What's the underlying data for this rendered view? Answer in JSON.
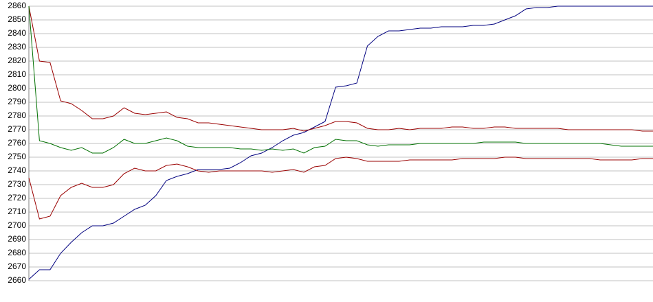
{
  "chart_data": {
    "type": "line",
    "ylim": [
      2660,
      2860
    ],
    "yticks": [
      2660,
      2670,
      2680,
      2690,
      2700,
      2710,
      2720,
      2730,
      2740,
      2750,
      2760,
      2770,
      2780,
      2790,
      2800,
      2810,
      2820,
      2830,
      2840,
      2850,
      2860
    ],
    "grid": true,
    "series": [
      {
        "color": "#00007f",
        "values": [
          2661,
          2668,
          2668,
          2680,
          2688,
          2695,
          2700,
          2700,
          2702,
          2707,
          2712,
          2715,
          2722,
          2733,
          2736,
          2738,
          2741,
          2741,
          2741,
          2742,
          2746,
          2751,
          2753,
          2757,
          2762,
          2766,
          2768,
          2772,
          2776,
          2801,
          2802,
          2804,
          2831,
          2838,
          2842,
          2842,
          2843,
          2844,
          2844,
          2845,
          2845,
          2845,
          2846,
          2846,
          2847,
          2850,
          2853,
          2858,
          2859,
          2859,
          2860,
          2860,
          2860,
          2860,
          2860,
          2860,
          2860,
          2860,
          2860,
          2860
        ]
      },
      {
        "color": "#9a0000",
        "values": [
          2860,
          2820,
          2819,
          2791,
          2789,
          2784,
          2778,
          2778,
          2780,
          2786,
          2782,
          2781,
          2782,
          2783,
          2779,
          2778,
          2775,
          2775,
          2774,
          2773,
          2772,
          2771,
          2770,
          2770,
          2770,
          2771,
          2769,
          2771,
          2773,
          2776,
          2776,
          2775,
          2771,
          2770,
          2770,
          2771,
          2770,
          2771,
          2771,
          2771,
          2772,
          2772,
          2771,
          2771,
          2772,
          2772,
          2771,
          2771,
          2771,
          2771,
          2771,
          2770,
          2770,
          2770,
          2770,
          2770,
          2770,
          2770,
          2769,
          2769
        ]
      },
      {
        "color": "#007000",
        "values": [
          2860,
          2762,
          2760,
          2757,
          2755,
          2757,
          2753,
          2753,
          2757,
          2763,
          2760,
          2760,
          2762,
          2764,
          2762,
          2758,
          2757,
          2757,
          2757,
          2757,
          2756,
          2756,
          2755,
          2756,
          2755,
          2756,
          2753,
          2757,
          2758,
          2763,
          2762,
          2762,
          2759,
          2758,
          2759,
          2759,
          2759,
          2760,
          2760,
          2760,
          2760,
          2760,
          2760,
          2761,
          2761,
          2761,
          2761,
          2760,
          2760,
          2760,
          2760,
          2760,
          2760,
          2760,
          2760,
          2759,
          2758,
          2758,
          2758,
          2758
        ]
      },
      {
        "color": "#9a0000",
        "values": [
          2735,
          2705,
          2707,
          2722,
          2728,
          2731,
          2728,
          2728,
          2730,
          2738,
          2742,
          2740,
          2740,
          2744,
          2745,
          2743,
          2740,
          2739,
          2740,
          2740,
          2740,
          2740,
          2740,
          2739,
          2740,
          2741,
          2739,
          2743,
          2744,
          2749,
          2750,
          2749,
          2747,
          2747,
          2747,
          2747,
          2748,
          2748,
          2748,
          2748,
          2748,
          2749,
          2749,
          2749,
          2749,
          2750,
          2750,
          2749,
          2749,
          2749,
          2749,
          2749,
          2749,
          2749,
          2748,
          2748,
          2748,
          2748,
          2749,
          2749
        ]
      }
    ]
  }
}
